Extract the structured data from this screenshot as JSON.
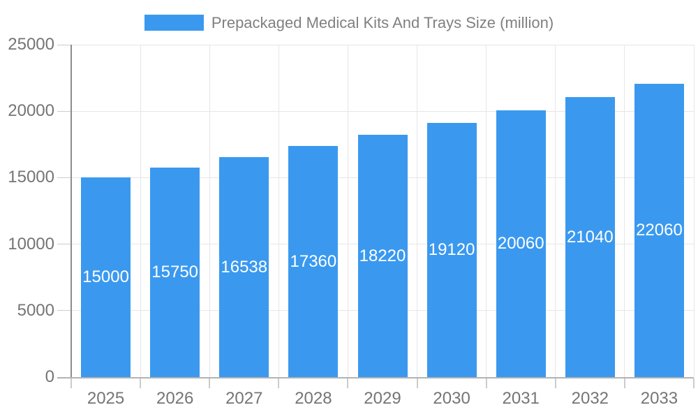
{
  "chart_data": {
    "type": "bar",
    "title": "Prepackaged Medical Kits And Trays Size (million)",
    "legend": {
      "position": "top",
      "entries": [
        "Prepackaged Medical Kits And Trays Size (million)"
      ]
    },
    "categories": [
      "2025",
      "2026",
      "2027",
      "2028",
      "2029",
      "2030",
      "2031",
      "2032",
      "2033"
    ],
    "values": [
      15000,
      15750,
      16538,
      17360,
      18220,
      19120,
      20060,
      21040,
      22060
    ],
    "value_labels": [
      "15000",
      "15750",
      "16538",
      "17360",
      "18220",
      "19120",
      "20060",
      "21040",
      "22060"
    ],
    "value_label_placement": "inside-middle",
    "xlabel": "",
    "ylabel": "",
    "ylim": [
      0,
      25000
    ],
    "yticks": [
      0,
      5000,
      10000,
      15000,
      20000,
      25000
    ],
    "ytick_labels": [
      "0",
      "5000",
      "10000",
      "15000",
      "20000",
      "25000"
    ],
    "grid": "horizontal and vertical light gridlines"
  },
  "colors": {
    "bar": "#3A99EF",
    "background": "#FFFFFF",
    "grid_line": "#E6E6E6",
    "y_axis_line": "#8C8C8C",
    "x_axis_line": "#B3B3B3",
    "tick_mark": "#CCCCCC",
    "axis_text": "#757575",
    "legend_text": "#808080",
    "value_text": "#FFFFFF"
  }
}
